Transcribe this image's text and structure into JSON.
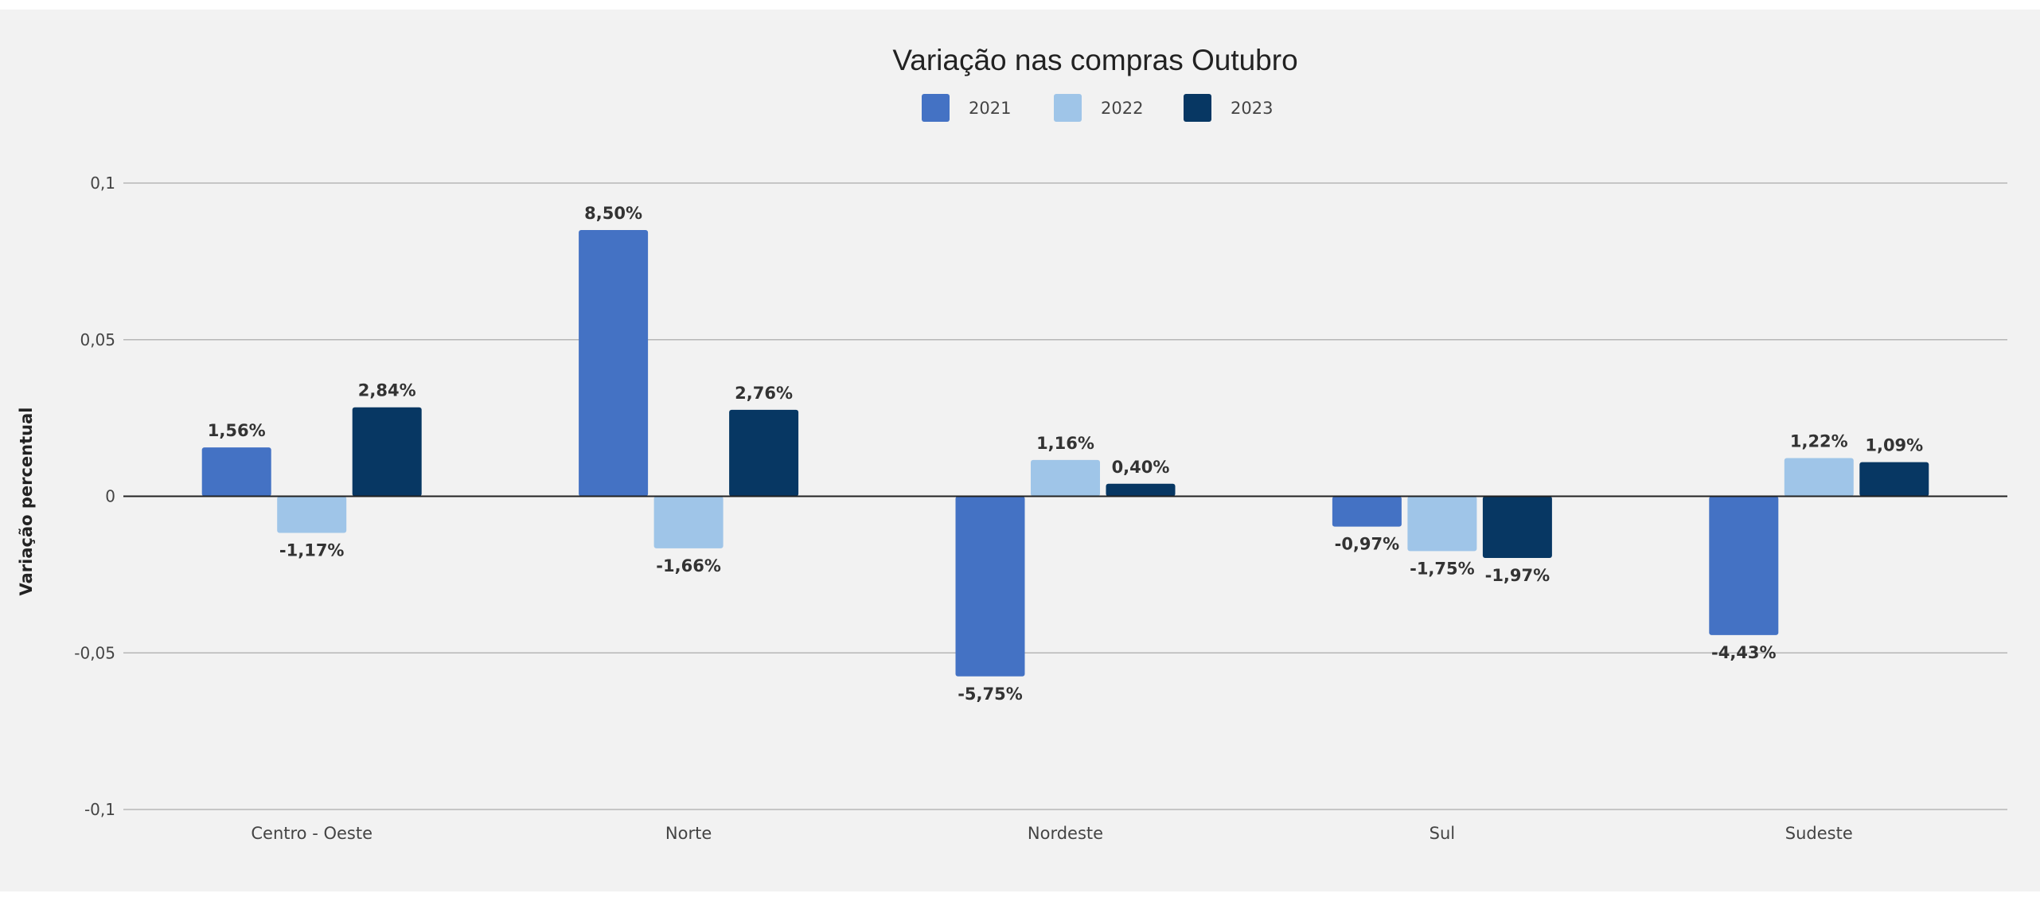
{
  "chart_data": {
    "type": "bar",
    "title": "Variação nas compras Outubro",
    "xlabel": "",
    "ylabel": "Variação percentual",
    "categories": [
      "Centro - Oeste",
      "Norte",
      "Nordeste",
      "Sul",
      "Sudeste"
    ],
    "series": [
      {
        "name": "2021",
        "color": "#4472c4",
        "values": [
          0.0156,
          0.085,
          -0.0575,
          -0.0097,
          -0.0443
        ],
        "labels": [
          "1,56%",
          "8,50%",
          "-5,75%",
          "-0,97%",
          "-4,43%"
        ]
      },
      {
        "name": "2022",
        "color": "#9fc5e8",
        "values": [
          -0.0117,
          -0.0166,
          0.0116,
          -0.0175,
          0.0122
        ],
        "labels": [
          "-1,17%",
          "-1,66%",
          "1,16%",
          "-1,75%",
          "1,22%"
        ]
      },
      {
        "name": "2023",
        "color": "#073763",
        "values": [
          0.0284,
          0.0276,
          0.004,
          -0.0197,
          0.0109
        ],
        "labels": [
          "2,84%",
          "2,76%",
          "0,40%",
          "-1,97%",
          "1,09%"
        ]
      }
    ],
    "ylim": [
      -0.1,
      0.1
    ],
    "yticks": [
      0.1,
      0.05,
      0,
      -0.05,
      -0.1
    ],
    "ytick_labels": [
      "0,1",
      "0,05",
      "0",
      "-0,05",
      "-0,1"
    ],
    "grid": true,
    "legend": "top-center"
  }
}
